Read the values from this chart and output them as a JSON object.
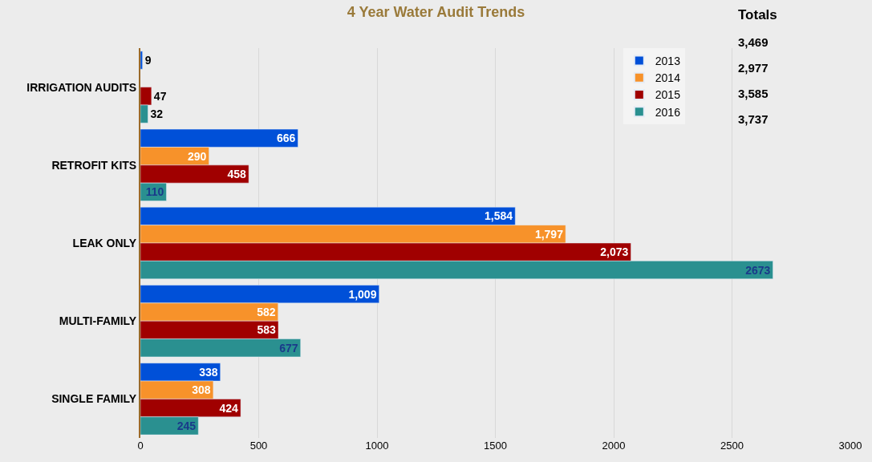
{
  "chart_data": {
    "type": "bar",
    "orientation": "horizontal",
    "title": "4 Year Water Audit Trends",
    "categories": [
      "IRRIGATION AUDITS",
      "RETROFIT KITS",
      "LEAK ONLY",
      "MULTI-FAMILY",
      "SINGLE FAMILY"
    ],
    "series": [
      {
        "name": "2013",
        "color": "#0050d8",
        "values": [
          9,
          666,
          1584,
          1009,
          338
        ],
        "value_labels": [
          "9",
          "666",
          "1,584",
          "1,009",
          "338"
        ]
      },
      {
        "name": "2014",
        "color": "#f7922a",
        "values": [
          null,
          290,
          1797,
          582,
          308
        ],
        "value_labels": [
          null,
          "290",
          "1,797",
          "582",
          "308"
        ]
      },
      {
        "name": "2015",
        "color": "#a00000",
        "values": [
          47,
          458,
          2073,
          583,
          424
        ],
        "value_labels": [
          "47",
          "458",
          "2,073",
          "583",
          "424"
        ]
      },
      {
        "name": "2016",
        "color": "#2a9090",
        "values": [
          32,
          110,
          2673,
          677,
          245
        ],
        "value_labels": [
          "32",
          "110",
          "2673",
          "677",
          "245"
        ]
      }
    ],
    "xlim": [
      0,
      3000
    ],
    "xticks": [
      0,
      500,
      1000,
      1500,
      2000,
      2500,
      3000
    ],
    "grid": "x",
    "legend": "top right",
    "annotations": [
      "Totals",
      "3,469",
      "2,977",
      "3,585",
      "3,737"
    ]
  }
}
